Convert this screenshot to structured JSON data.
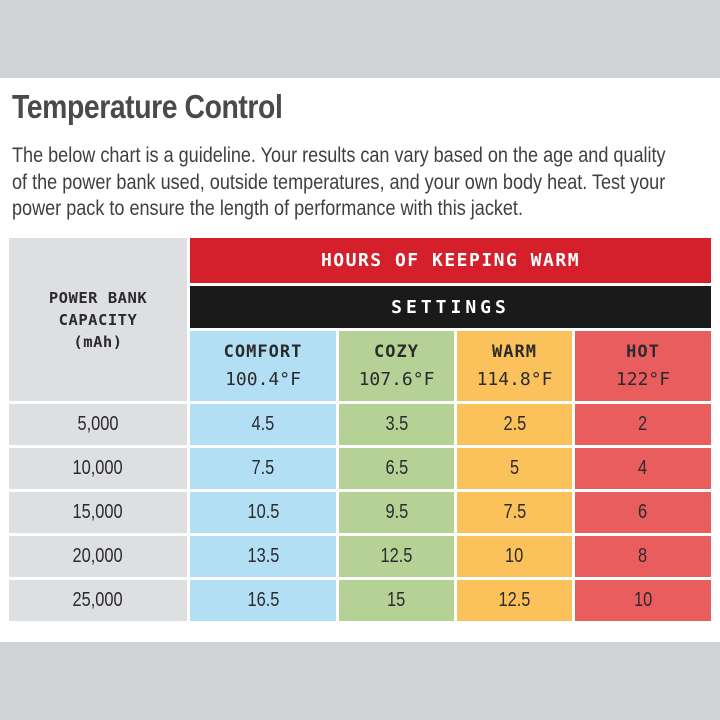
{
  "title": "Temperature Control",
  "description": [
    "The below chart is a guideline. Your results can vary based on the age and quality",
    "of the power bank used, outside temperatures, and your own body heat. Test your",
    "power pack to ensure the length of performance with this jacket."
  ],
  "table": {
    "capacity_header": [
      "POWER BANK",
      "CAPACITY",
      "(mAh)"
    ],
    "hours_header": "HOURS OF KEEPING WARM",
    "settings_header": "SETTINGS",
    "columns": [
      {
        "name": "COMFORT",
        "temp": "100.4°F",
        "color": "#b3dff5"
      },
      {
        "name": "COZY",
        "temp": "107.6°F",
        "color": "#b5d196"
      },
      {
        "name": "WARM",
        "temp": "114.8°F",
        "color": "#fbc25b"
      },
      {
        "name": "HOT",
        "temp": "122°F",
        "color": "#ea5d5e"
      }
    ],
    "rows": [
      {
        "capacity": "5,000",
        "values": [
          "4.5",
          "3.5",
          "2.5",
          "2"
        ]
      },
      {
        "capacity": "10,000",
        "values": [
          "7.5",
          "6.5",
          "5",
          "4"
        ]
      },
      {
        "capacity": "15,000",
        "values": [
          "10.5",
          "9.5",
          "7.5",
          "6"
        ]
      },
      {
        "capacity": "20,000",
        "values": [
          "13.5",
          "12.5",
          "10",
          "8"
        ]
      },
      {
        "capacity": "25,000",
        "values": [
          "16.5",
          "15",
          "12.5",
          "10"
        ]
      }
    ]
  }
}
